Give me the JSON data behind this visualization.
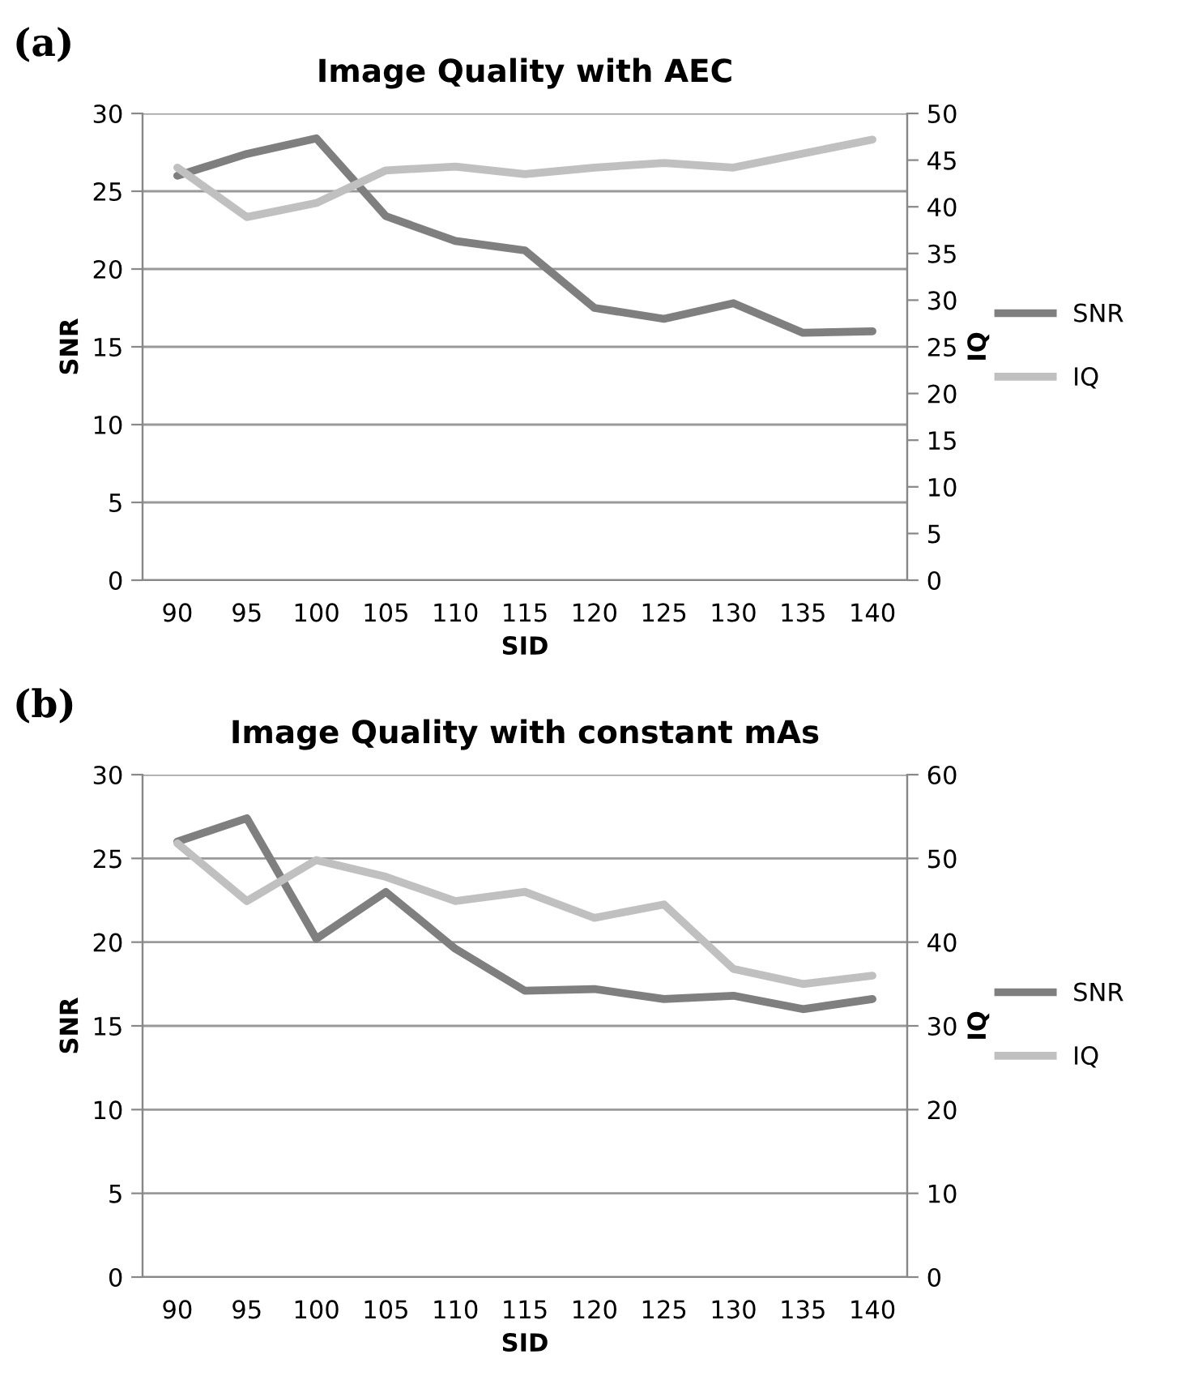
{
  "chart_data": [
    {
      "type": "line",
      "title": "Image Quality with AEC",
      "annotations": [
        "(a)"
      ],
      "xlabel": "SID",
      "ylabel": "SNR",
      "y2label": "IQ",
      "categories": [
        "90",
        "95",
        "100",
        "105",
        "110",
        "115",
        "120",
        "125",
        "130",
        "135",
        "140"
      ],
      "series": [
        {
          "name": "SNR",
          "color": "#7f7f7f",
          "values": [
            26.0,
            27.4,
            28.4,
            23.4,
            21.8,
            21.2,
            17.5,
            16.8,
            17.8,
            15.9,
            16.0
          ]
        },
        {
          "name": "IQ",
          "color": "#c0c0c0",
          "axis": "y2",
          "values": [
            44.2,
            38.9,
            40.4,
            43.9,
            44.3,
            43.5,
            44.2,
            44.7,
            44.2,
            45.7,
            47.2
          ]
        }
      ],
      "ylim": [
        0,
        30
      ],
      "yticks": [
        0,
        5,
        10,
        15,
        20,
        25,
        30
      ],
      "y2lim": [
        0,
        50
      ],
      "y2ticks": [
        0,
        5,
        10,
        15,
        20,
        25,
        30,
        35,
        40,
        45,
        50
      ],
      "grid": "y",
      "legend": "right",
      "marker": "none",
      "line_style": "solid"
    },
    {
      "type": "line",
      "title": "Image Quality with constant mAs",
      "annotations": [
        "(b)"
      ],
      "xlabel": "SID",
      "ylabel": "SNR",
      "y2label": "IQ",
      "categories": [
        "90",
        "95",
        "100",
        "105",
        "110",
        "115",
        "120",
        "125",
        "130",
        "135",
        "140"
      ],
      "series": [
        {
          "name": "SNR",
          "color": "#7f7f7f",
          "values": [
            26.0,
            27.4,
            20.2,
            23.0,
            19.6,
            17.1,
            17.2,
            16.6,
            16.8,
            16.0,
            16.6
          ]
        },
        {
          "name": "IQ",
          "color": "#c0c0c0",
          "axis": "y2",
          "values": [
            51.8,
            44.9,
            49.8,
            47.8,
            44.9,
            46.0,
            42.9,
            44.5,
            36.8,
            35.0,
            36.0
          ]
        }
      ],
      "ylim": [
        0,
        30
      ],
      "yticks": [
        0,
        5,
        10,
        15,
        20,
        25,
        30
      ],
      "y2lim": [
        0,
        60
      ],
      "y2ticks": [
        0,
        10,
        20,
        30,
        40,
        50,
        60
      ],
      "grid": "y",
      "legend": "right",
      "marker": "none",
      "line_style": "solid"
    }
  ]
}
